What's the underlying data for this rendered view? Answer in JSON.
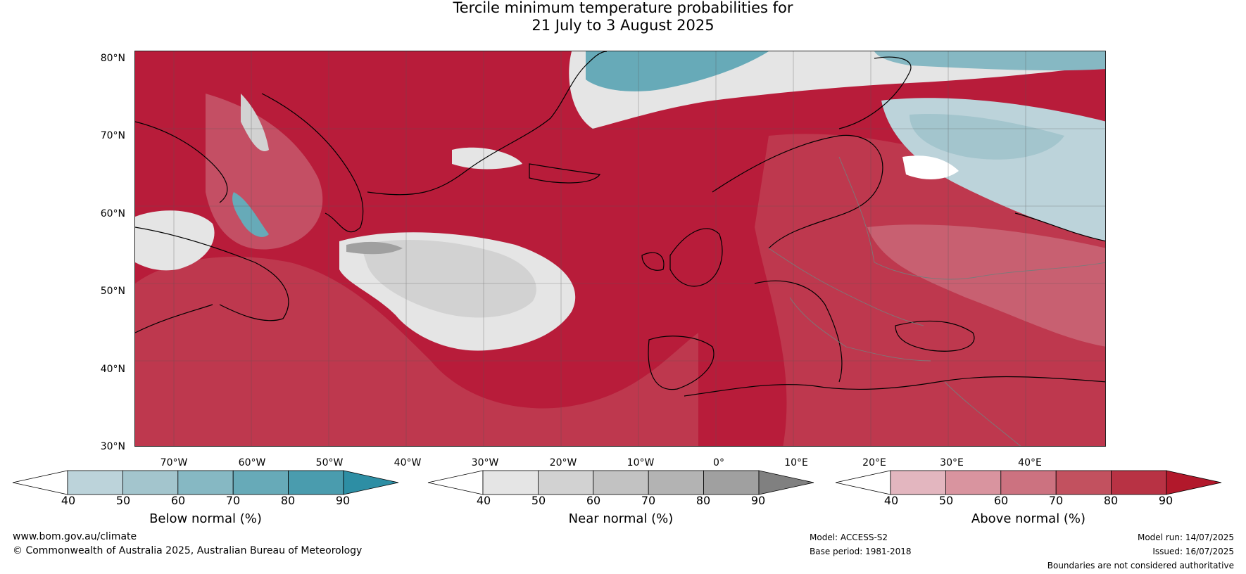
{
  "title_line1": "Tercile minimum temperature probabilities for",
  "title_line2": "21 July to 3 August 2025",
  "lat_labels": [
    "80°N",
    "70°N",
    "60°N",
    "50°N",
    "40°N",
    "30°N"
  ],
  "lon_labels": [
    "70°W",
    "60°W",
    "50°W",
    "40°W",
    "30°W",
    "20°W",
    "10°W",
    "0°",
    "10°E",
    "20°E",
    "30°E",
    "40°E"
  ],
  "legend": {
    "below": {
      "label": "Below normal (%)",
      "ticks": [
        "40",
        "50",
        "60",
        "70",
        "80",
        "90"
      ],
      "colors": [
        "#ffffff",
        "#bcd3da",
        "#a3c5cd",
        "#86b8c3",
        "#67aab8",
        "#4a9cae",
        "#2d8ea4"
      ]
    },
    "near": {
      "label": "Near normal (%)",
      "ticks": [
        "40",
        "50",
        "60",
        "70",
        "80",
        "90"
      ],
      "colors": [
        "#ffffff",
        "#e5e5e5",
        "#d2d2d2",
        "#c2c2c2",
        "#b3b3b3",
        "#a0a0a0",
        "#808080"
      ]
    },
    "above": {
      "label": "Above normal (%)",
      "ticks": [
        "40",
        "50",
        "60",
        "70",
        "80",
        "90"
      ],
      "colors": [
        "#ffffff",
        "#e3b6bf",
        "#d9949f",
        "#cc7280",
        "#c2515f",
        "#b83244",
        "#b2182b"
      ]
    }
  },
  "footer": {
    "website": "www.bom.gov.au/climate",
    "copyright": "© Commonwealth of Australia 2025, Australian Bureau of Meteorology",
    "model": "Model: ACCESS-S2",
    "base_period": "Base period: 1981-2018",
    "model_run": "Model run: 14/07/2025",
    "issued": "Issued: 16/07/2025",
    "disclaimer": "Boundaries are not considered authoritative"
  }
}
